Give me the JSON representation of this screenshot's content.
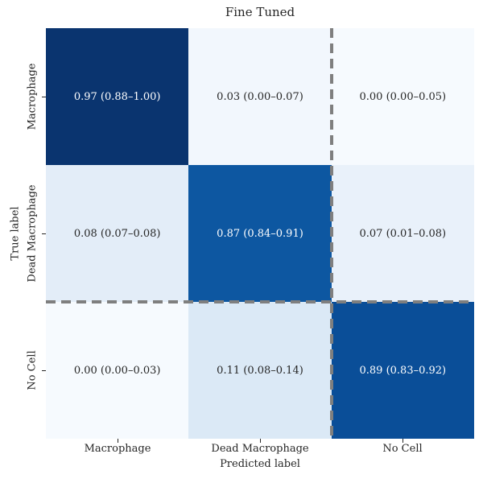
{
  "chart_data": {
    "type": "heatmap",
    "title": "Fine Tuned",
    "xlabel": "Predicted label",
    "ylabel": "True label",
    "x_categories": [
      "Macrophage",
      "Dead Macrophage",
      "No Cell"
    ],
    "y_categories": [
      "Macrophage",
      "Dead Macrophage",
      "No Cell"
    ],
    "colormap": "Blues",
    "values": [
      [
        0.97,
        0.03,
        0.0
      ],
      [
        0.08,
        0.87,
        0.07
      ],
      [
        0.0,
        0.11,
        0.89
      ]
    ],
    "ci_low": [
      [
        0.88,
        0.0,
        0.0
      ],
      [
        0.07,
        0.84,
        0.01
      ],
      [
        0.0,
        0.08,
        0.83
      ]
    ],
    "ci_high": [
      [
        1.0,
        0.07,
        0.05
      ],
      [
        0.08,
        0.91,
        0.08
      ],
      [
        0.03,
        0.14,
        0.92
      ]
    ],
    "cells": [
      [
        {
          "label": "0.97 (0.88–1.00)",
          "bg": "#0a346f",
          "fg": "#ffffff"
        },
        {
          "label": "0.03 (0.00–0.07)",
          "bg": "#f2f7fd",
          "fg": "#262626"
        },
        {
          "label": "0.00 (0.00–0.05)",
          "bg": "#f6fafe",
          "fg": "#262626"
        }
      ],
      [
        {
          "label": "0.08 (0.07–0.08)",
          "bg": "#e3edf8",
          "fg": "#262626"
        },
        {
          "label": "0.87 (0.84–0.91)",
          "bg": "#0d57a1",
          "fg": "#ffffff"
        },
        {
          "label": "0.07 (0.01–0.08)",
          "bg": "#e9f1fa",
          "fg": "#262626"
        }
      ],
      [
        {
          "label": "0.00 (0.00–0.03)",
          "bg": "#f6fafe",
          "fg": "#262626"
        },
        {
          "label": "0.11 (0.08–0.14)",
          "bg": "#dbe9f6",
          "fg": "#262626"
        },
        {
          "label": "0.89 (0.83–0.92)",
          "bg": "#0a4e98",
          "fg": "#ffffff"
        }
      ]
    ],
    "divider": {
      "color": "#7f7f7f",
      "style": "dashed",
      "between_rows": [
        1,
        2
      ],
      "between_cols": [
        1,
        2
      ]
    },
    "grid": false,
    "legend": "none"
  }
}
